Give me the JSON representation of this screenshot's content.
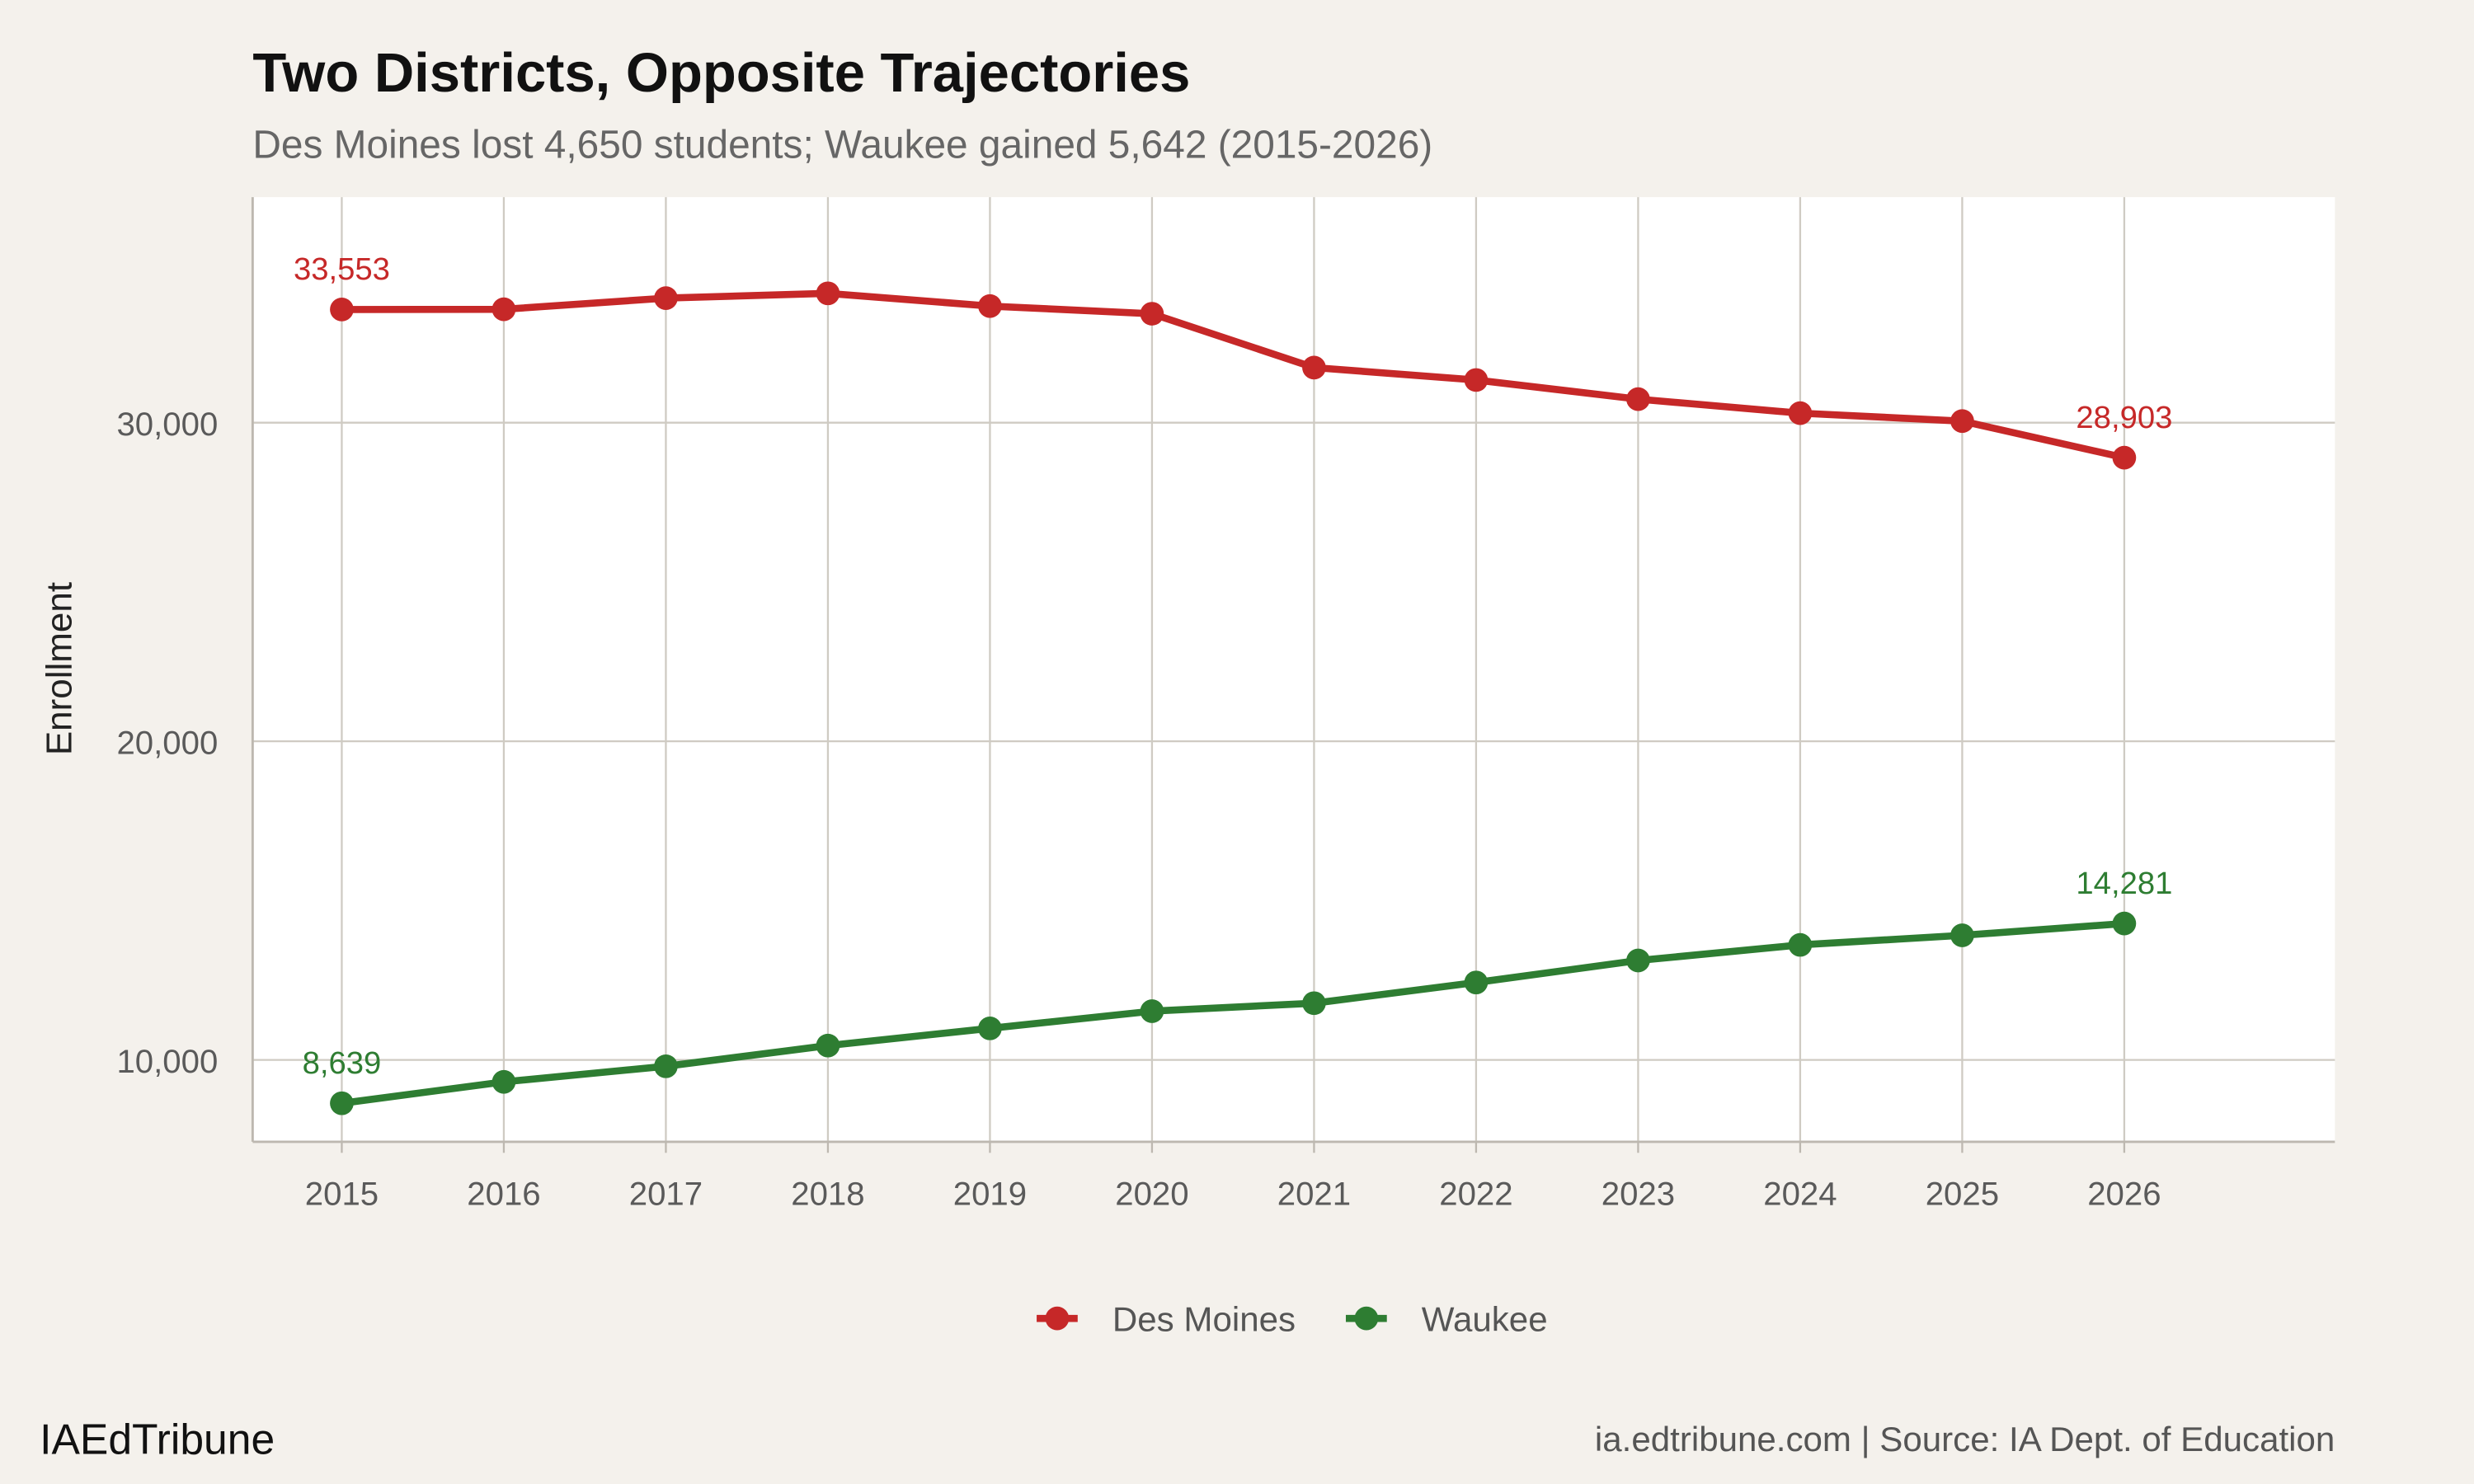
{
  "brand": "IAEdTribune",
  "footer_source": "ia.edtribune.com | Source: IA Dept. of Education",
  "chart_data": {
    "type": "line",
    "title": "Two Districts, Opposite Trajectories",
    "subtitle": "Des Moines lost 4,650 students; Waukee gained 5,642 (2015-2026)",
    "xlabel": "",
    "ylabel": "Enrollment",
    "x": [
      2015,
      2016,
      2017,
      2018,
      2019,
      2020,
      2021,
      2022,
      2023,
      2024,
      2025,
      2026
    ],
    "x_ticks": [
      "2015",
      "2016",
      "2017",
      "2018",
      "2019",
      "2020",
      "2021",
      "2022",
      "2023",
      "2024",
      "2025",
      "2026"
    ],
    "y_ticks": [
      10000,
      20000,
      30000
    ],
    "y_tick_labels": [
      "10,000",
      "20,000",
      "30,000"
    ],
    "xlim": [
      2014.45,
      2027.3
    ],
    "ylim": [
      7430,
      37080
    ],
    "grid": true,
    "legend_position": "bottom",
    "series": [
      {
        "name": "Des Moines",
        "color": "#c62828",
        "values": [
          33553,
          33560,
          33910,
          34060,
          33660,
          33420,
          31730,
          31340,
          30740,
          30300,
          30050,
          28903
        ],
        "labels": [
          {
            "index": 0,
            "text": "33,553"
          },
          {
            "index": 11,
            "text": "28,903"
          }
        ]
      },
      {
        "name": "Waukee",
        "color": "#2e7d32",
        "values": [
          8639,
          9310,
          9800,
          10450,
          10990,
          11530,
          11780,
          12430,
          13120,
          13610,
          13910,
          14281
        ],
        "labels": [
          {
            "index": 0,
            "text": "8,639"
          },
          {
            "index": 11,
            "text": "14,281"
          }
        ]
      }
    ]
  }
}
